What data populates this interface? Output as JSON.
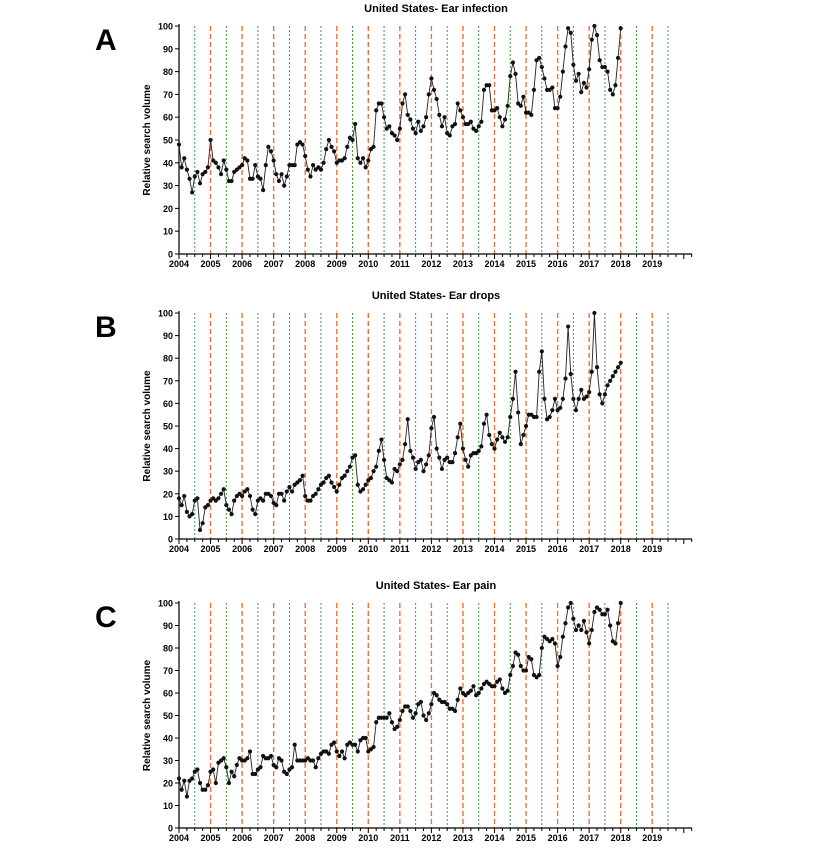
{
  "chart_data": [
    {
      "type": "line",
      "panel_label": "A",
      "title": "United States-  Ear infection",
      "xlabel": "",
      "ylabel": "Relative search volume",
      "ylim": [
        0,
        100
      ],
      "yticks": [
        0,
        10,
        20,
        30,
        40,
        50,
        60,
        70,
        80,
        90,
        100
      ],
      "xticks": [
        "2004",
        "2005",
        "2006",
        "2007",
        "2008",
        "2009",
        "2010",
        "2011",
        "2012",
        "2013",
        "2014",
        "2015",
        "2016",
        "2017",
        "2018",
        "2019"
      ],
      "x_start_year": 2004,
      "vertical_markers": {
        "orange": "January",
        "green": "July"
      },
      "series": [
        {
          "values": [
            48,
            38,
            42,
            37,
            33,
            27,
            34,
            36,
            31,
            35,
            36,
            38,
            50,
            41,
            40,
            38,
            35,
            41,
            37,
            32,
            32,
            36,
            37,
            38,
            39,
            42,
            41,
            33,
            33,
            39,
            34,
            33,
            28,
            39,
            47,
            45,
            41,
            35,
            32,
            35,
            30,
            34,
            39,
            39,
            39,
            48,
            49,
            48,
            43,
            37,
            34,
            39,
            37,
            38,
            37,
            40,
            46,
            50,
            47,
            45,
            40,
            41,
            41,
            42,
            47,
            51,
            50,
            57,
            42,
            40,
            42,
            38,
            41,
            46,
            47,
            63,
            66,
            66,
            60,
            55,
            56,
            53,
            52,
            50,
            55,
            66,
            70,
            61,
            59,
            55,
            53,
            58,
            54,
            56,
            60,
            70,
            77,
            72,
            68,
            61,
            56,
            60,
            53,
            52,
            56,
            57,
            66,
            63,
            60,
            57,
            57,
            58,
            55,
            54,
            56,
            58,
            72,
            74,
            74,
            63,
            63,
            64,
            60,
            56,
            59,
            65,
            78,
            84,
            79,
            66,
            65,
            69,
            62,
            62,
            61,
            72,
            85,
            86,
            82,
            77,
            72,
            72,
            73,
            64,
            64,
            69,
            80,
            91,
            99,
            97,
            83,
            76,
            79,
            71,
            75,
            73,
            81,
            94,
            100,
            96,
            85,
            82,
            82,
            80,
            72,
            70,
            74,
            86,
            99
          ]
        }
      ]
    },
    {
      "type": "line",
      "panel_label": "B",
      "title": "United States-  Ear drops",
      "xlabel": "",
      "ylabel": "Relative search volume",
      "ylim": [
        0,
        100
      ],
      "yticks": [
        0,
        10,
        20,
        30,
        40,
        50,
        60,
        70,
        80,
        90,
        100
      ],
      "xticks": [
        "2004",
        "2005",
        "2006",
        "2007",
        "2008",
        "2009",
        "2010",
        "2011",
        "2012",
        "2013",
        "2014",
        "2015",
        "2016",
        "2017",
        "2018",
        "2019"
      ],
      "x_start_year": 2004,
      "vertical_markers": {
        "orange": "January",
        "green": "July"
      },
      "series": [
        {
          "values": [
            18,
            15,
            19,
            12,
            10,
            11,
            17,
            18,
            4,
            7,
            14,
            15,
            17,
            18,
            17,
            18,
            20,
            22,
            15,
            13,
            11,
            17,
            19,
            20,
            19,
            21,
            22,
            19,
            13,
            11,
            17,
            18,
            17,
            20,
            20,
            19,
            16,
            15,
            20,
            20,
            17,
            21,
            23,
            21,
            24,
            25,
            26,
            28,
            19,
            17,
            17,
            19,
            20,
            22,
            24,
            25,
            27,
            28,
            25,
            23,
            21,
            24,
            27,
            28,
            30,
            32,
            36,
            37,
            24,
            21,
            22,
            24,
            26,
            27,
            30,
            32,
            39,
            44,
            35,
            27,
            26,
            25,
            31,
            30,
            33,
            35,
            42,
            53,
            39,
            36,
            31,
            34,
            35,
            30,
            33,
            37,
            49,
            54,
            40,
            36,
            31,
            35,
            36,
            34,
            34,
            38,
            45,
            51,
            40,
            35,
            32,
            37,
            38,
            38,
            39,
            41,
            51,
            55,
            46,
            42,
            40,
            44,
            47,
            45,
            43,
            45,
            54,
            62,
            74,
            56,
            42,
            46,
            50,
            55,
            55,
            54,
            54,
            74,
            83,
            62,
            53,
            54,
            57,
            62,
            57,
            58,
            62,
            71,
            94,
            73,
            62,
            57,
            62,
            66,
            62,
            63,
            65,
            74,
            100,
            76,
            64,
            60,
            64,
            68,
            70,
            72,
            74,
            76,
            78
          ]
        }
      ]
    },
    {
      "type": "line",
      "panel_label": "C",
      "title": "United States-  Ear pain",
      "xlabel": "",
      "ylabel": "Relative search volume",
      "ylim": [
        0,
        100
      ],
      "yticks": [
        0,
        10,
        20,
        30,
        40,
        50,
        60,
        70,
        80,
        90,
        100
      ],
      "xticks": [
        "2004",
        "2005",
        "2006",
        "2007",
        "2008",
        "2009",
        "2010",
        "2011",
        "2012",
        "2013",
        "2014",
        "2015",
        "2016",
        "2017",
        "2018",
        "2019"
      ],
      "x_start_year": 2004,
      "vertical_markers": {
        "orange": "January",
        "green": "July"
      },
      "series": [
        {
          "values": [
            22,
            17,
            21,
            14,
            21,
            22,
            25,
            26,
            20,
            17,
            17,
            19,
            25,
            26,
            20,
            29,
            30,
            31,
            27,
            20,
            25,
            23,
            28,
            31,
            30,
            30,
            31,
            34,
            24,
            24,
            26,
            27,
            32,
            31,
            31,
            32,
            28,
            27,
            31,
            30,
            25,
            24,
            26,
            27,
            37,
            30,
            30,
            30,
            30,
            31,
            30,
            30,
            27,
            31,
            33,
            34,
            34,
            33,
            37,
            38,
            34,
            32,
            34,
            31,
            37,
            38,
            37,
            37,
            34,
            39,
            40,
            40,
            34,
            35,
            36,
            47,
            49,
            49,
            49,
            49,
            51,
            47,
            44,
            45,
            48,
            52,
            54,
            54,
            52,
            49,
            51,
            55,
            56,
            50,
            48,
            51,
            55,
            60,
            59,
            57,
            56,
            56,
            55,
            53,
            53,
            52,
            57,
            62,
            60,
            59,
            60,
            61,
            63,
            59,
            60,
            62,
            64,
            65,
            64,
            63,
            63,
            65,
            66,
            62,
            60,
            61,
            68,
            72,
            78,
            77,
            72,
            70,
            70,
            76,
            75,
            68,
            67,
            68,
            80,
            85,
            84,
            83,
            84,
            82,
            72,
            76,
            85,
            91,
            98,
            100,
            93,
            88,
            90,
            88,
            92,
            87,
            82,
            88,
            96,
            98,
            97,
            95,
            95,
            97,
            90,
            83,
            82,
            91,
            100
          ]
        }
      ]
    }
  ]
}
